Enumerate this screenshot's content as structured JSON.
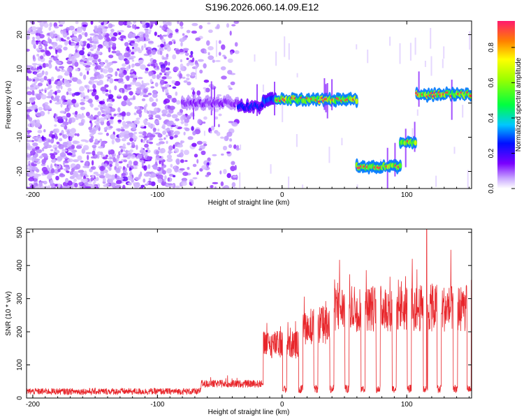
{
  "title": "S196.2026.060.14.09.E12",
  "colorbar": {
    "label": "Normalized spectral amplitude",
    "ticks": [
      "0.0",
      "0.2",
      "0.4",
      "0.6",
      "0.8"
    ]
  },
  "chart_data": [
    {
      "type": "heatmap",
      "name": "spectrogram",
      "xlabel": "Height of straight line (km)",
      "ylabel": "Frequency (Hz)",
      "xlim": [
        -205,
        152
      ],
      "ylim": [
        -25,
        24
      ],
      "xticks": [
        -200,
        -100,
        0,
        100
      ],
      "yticks": [
        -20,
        -10,
        0,
        10,
        20
      ],
      "value_range": [
        0,
        0.95
      ],
      "noise_region_x": [
        -205,
        -35
      ],
      "tracks": [
        {
          "x0": -80,
          "x1": -35,
          "f": 0,
          "amp": 0.2
        },
        {
          "x0": -35,
          "x1": -15,
          "f": -1,
          "amp": 0.4
        },
        {
          "x0": -15,
          "x1": -5,
          "f": 1,
          "amp": 0.5
        },
        {
          "x0": -5,
          "x1": 60,
          "f": 1,
          "amp": 0.95
        },
        {
          "x0": 60,
          "x1": 95,
          "f": -18.5,
          "amp": 0.95
        },
        {
          "x0": 95,
          "x1": 108,
          "f": -11.5,
          "amp": 0.95
        },
        {
          "x0": 108,
          "x1": 152,
          "f": 2.5,
          "amp": 0.95
        }
      ]
    },
    {
      "type": "line",
      "name": "snr",
      "xlabel": "Height of straight line (km)",
      "ylabel": "SNR (10 * v/v)",
      "xlim": [
        -205,
        152
      ],
      "ylim": [
        0,
        510
      ],
      "xticks": [
        -200,
        -100,
        0,
        100
      ],
      "yticks": [
        0,
        100,
        200,
        300,
        400,
        500
      ],
      "color": "#e8262b",
      "segments": [
        {
          "x0": -205,
          "x1": -65,
          "level": 20
        },
        {
          "x0": -65,
          "x1": -15,
          "level": 45
        },
        {
          "x0": -15,
          "x1": 15,
          "level": 170
        },
        {
          "x0": 15,
          "x1": 40,
          "level": 230
        },
        {
          "x0": 40,
          "x1": 152,
          "level": 285
        }
      ],
      "dropouts_x": [
        2,
        15,
        27,
        40,
        52,
        65,
        77,
        90,
        102,
        115,
        126,
        139,
        150
      ],
      "peak": {
        "x": 116,
        "y": 510
      }
    }
  ]
}
